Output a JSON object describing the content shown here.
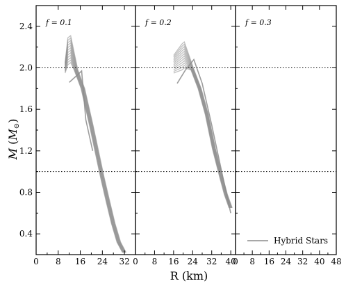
{
  "chart_data": {
    "type": "line",
    "xlabel": "R (km)",
    "ylabel": "M (M⊙)",
    "ylim": [
      0.2,
      2.6
    ],
    "y_ticks": [
      "0.4",
      "0.8",
      "1.2",
      "1.6",
      "2.0",
      "2.4"
    ],
    "reference_lines_y": [
      2.0,
      1.0
    ],
    "legend": {
      "label": "Hybrid Stars",
      "position": "lower-right",
      "color": "#8c8c8c"
    },
    "panels": [
      {
        "label": "f = 0.1",
        "xlim": [
          0,
          36
        ],
        "x_ticks": [
          "0",
          "8",
          "16",
          "24",
          "32"
        ],
        "curve_family": {
          "count": 12,
          "peak_R": 12.5,
          "peak_M_range": [
            2.05,
            2.31
          ],
          "start_R": 10.5,
          "start_M_range": [
            1.95,
            2.05
          ],
          "tail": [
            [
              14.5,
              1.98
            ],
            [
              17,
              1.8
            ],
            [
              20,
              1.45
            ],
            [
              22,
              1.2
            ],
            [
              24,
              0.95
            ],
            [
              26,
              0.72
            ],
            [
              28,
              0.5
            ],
            [
              30,
              0.32
            ],
            [
              32,
              0.22
            ]
          ]
        },
        "branch": [
          [
            12,
            1.86
          ],
          [
            14.5,
            1.92
          ],
          [
            16.5,
            1.97
          ],
          [
            18,
            1.5
          ],
          [
            20.5,
            1.2
          ]
        ]
      },
      {
        "label": "f = 0.2",
        "xlim": [
          0,
          42
        ],
        "x_ticks": [
          "0",
          "8",
          "16",
          "24",
          "32",
          "40"
        ],
        "curve_family": {
          "count": 12,
          "peak_R": 20.5,
          "peak_M_range": [
            2.0,
            2.25
          ],
          "start_R": 16,
          "start_M_range": [
            1.95,
            2.12
          ],
          "tail": [
            [
              24,
              1.98
            ],
            [
              27,
              1.8
            ],
            [
              30,
              1.55
            ],
            [
              33,
              1.22
            ],
            [
              36,
              0.95
            ],
            [
              38,
              0.78
            ],
            [
              40,
              0.65
            ]
          ]
        },
        "branch": [
          [
            17.5,
            1.85
          ],
          [
            21,
            1.98
          ],
          [
            24.5,
            2.08
          ],
          [
            28,
            1.85
          ],
          [
            32,
            1.45
          ],
          [
            36,
            1.02
          ],
          [
            40,
            0.6
          ]
        ]
      },
      {
        "label": "f = 0.3",
        "xlim": [
          0,
          48
        ],
        "x_ticks": [
          "0",
          "8",
          "16",
          "24",
          "32",
          "40",
          "48"
        ],
        "curve_family": null,
        "branch": null
      }
    ]
  }
}
